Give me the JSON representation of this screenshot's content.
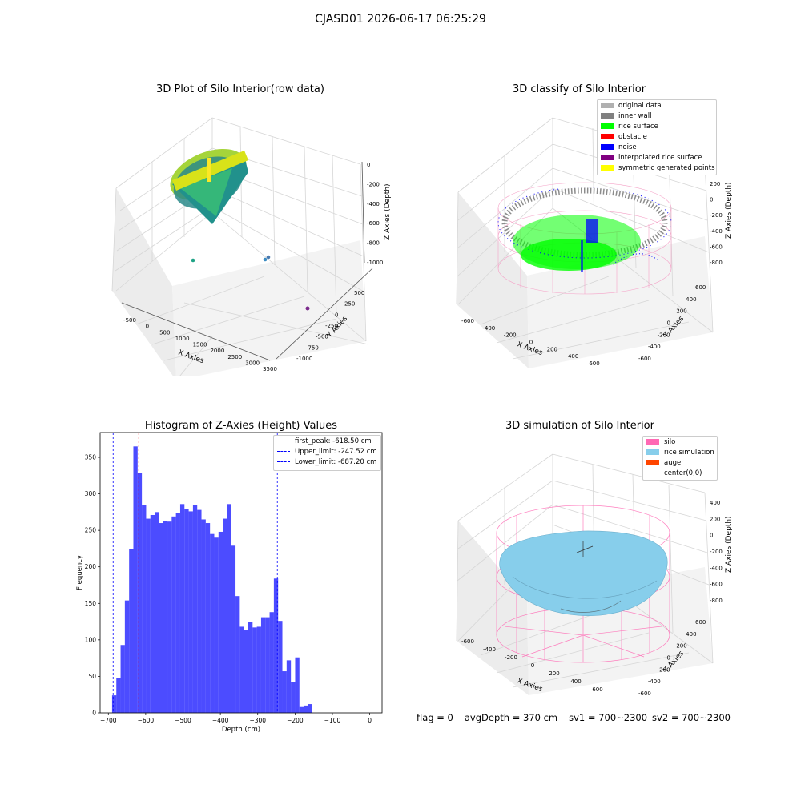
{
  "figure_title": "CJASD01 2026-06-17 06:25:29",
  "panels": {
    "raw": {
      "title": "3D Plot of Silo Interior(row data)",
      "x_label": "X Axies",
      "y_label": "Y Axies",
      "z_label": "Z Axies (Depth)",
      "x_ticks": [
        "-500",
        "0",
        "500",
        "1000",
        "1500",
        "2000",
        "2500",
        "3000",
        "3500"
      ],
      "y_ticks": [
        "500",
        "250",
        "0",
        "-250",
        "-500",
        "-750",
        "-1000"
      ],
      "z_ticks": [
        "0",
        "-200",
        "-400",
        "-600",
        "-800",
        "-1000"
      ]
    },
    "classify": {
      "title": "3D classify of Silo Interior",
      "x_label": "X Axies",
      "y_label": "Y Axies",
      "z_label": "Z Axies (Depth)",
      "x_ticks": [
        "-600",
        "-400",
        "-200",
        "0",
        "200",
        "400",
        "600"
      ],
      "y_ticks": [
        "600",
        "400",
        "200",
        "0",
        "-200",
        "-400",
        "-600"
      ],
      "z_ticks": [
        "200",
        "0",
        "-200",
        "-400",
        "-600",
        "-800"
      ],
      "legend": [
        {
          "label": "original data",
          "color": "#b0b0b0"
        },
        {
          "label": "inner wall",
          "color": "#808080"
        },
        {
          "label": "rice surface",
          "color": "#00ff00"
        },
        {
          "label": "obstacle",
          "color": "#ff0000"
        },
        {
          "label": "noise",
          "color": "#0000ff"
        },
        {
          "label": "interpolated rice surface",
          "color": "#800080"
        },
        {
          "label": "symmetric generated points",
          "color": "#ffff00"
        }
      ]
    },
    "simulation": {
      "title": "3D simulation of Silo Interior",
      "x_label": "X Axies",
      "y_label": "Y Axies",
      "z_label": "Z Axies (Depth)",
      "x_ticks": [
        "-600",
        "-400",
        "-200",
        "0",
        "200",
        "400",
        "600"
      ],
      "y_ticks": [
        "600",
        "400",
        "200",
        "0",
        "-200",
        "-400",
        "-600"
      ],
      "z_ticks": [
        "400",
        "200",
        "0",
        "-200",
        "-400",
        "-600",
        "-800"
      ],
      "legend": [
        {
          "label": "silo",
          "color": "#ff69b4"
        },
        {
          "label": "rice simulation",
          "color": "#87ceeb"
        },
        {
          "label": "auger",
          "color": "#ff4500"
        },
        {
          "label": "center(0,0)",
          "color": ""
        }
      ]
    }
  },
  "status": {
    "flag": "flag = 0",
    "avg_depth": "avgDepth = 370 cm",
    "sv1": "sv1 = 700~2300",
    "sv2": "sv2 = 700~2300"
  },
  "chart_data": {
    "type": "bar",
    "title": "Histogram of Z-Axies (Height) Values",
    "xlabel": "Depth (cm)",
    "ylabel": "Frequency",
    "xlim": [
      -722,
      33
    ],
    "ylim": [
      0,
      384
    ],
    "x_ticks": [
      -700,
      -600,
      -500,
      -400,
      -300,
      -200,
      -100,
      0
    ],
    "y_ticks": [
      0,
      50,
      100,
      150,
      200,
      250,
      300,
      350
    ],
    "bin_width": 11.4,
    "bin_start": -690,
    "color": "#0000ff",
    "values": [
      24,
      48,
      93,
      154,
      224,
      365,
      329,
      285,
      266,
      271,
      275,
      260,
      263,
      262,
      269,
      274,
      286,
      279,
      276,
      285,
      278,
      265,
      260,
      245,
      240,
      248,
      266,
      286,
      229,
      160,
      118,
      113,
      124,
      117,
      118,
      131,
      131,
      138,
      184,
      126,
      57,
      72,
      42,
      76,
      8,
      10,
      12
    ],
    "lines": [
      {
        "label": "first_peak: -618.50 cm",
        "x": -618.5,
        "color": "#ff0000"
      },
      {
        "label": "Upper_limit: -247.52 cm",
        "x": -247.52,
        "color": "#0000ff"
      },
      {
        "label": "Lower_limit: -687.20 cm",
        "x": -687.2,
        "color": "#0000ff"
      }
    ]
  }
}
